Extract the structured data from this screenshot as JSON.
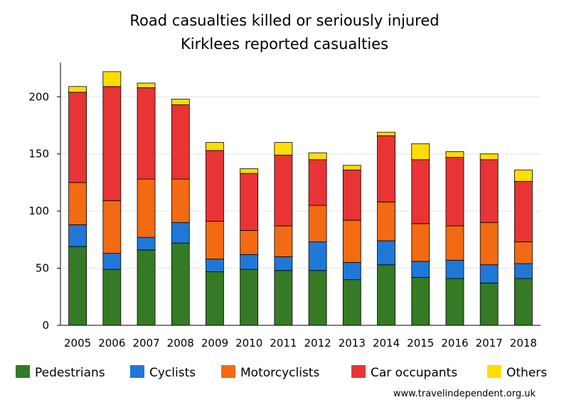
{
  "chart_data": {
    "type": "bar",
    "stacked": true,
    "title": "Road casualties killed or seriously injured",
    "subtitle": "Kirklees reported casualties",
    "xlabel": "",
    "ylabel": "",
    "ylim": [
      0,
      230
    ],
    "yticks": [
      0,
      50,
      100,
      150,
      200
    ],
    "grid": true,
    "legend_position": "bottom",
    "categories": [
      "2005",
      "2006",
      "2007",
      "2008",
      "2009",
      "2010",
      "2011",
      "2012",
      "2013",
      "2014",
      "2015",
      "2016",
      "2017",
      "2018"
    ],
    "series": [
      {
        "name": "Pedestrians",
        "color": "#357a24",
        "values": [
          69,
          49,
          66,
          72,
          47,
          49,
          48,
          48,
          40,
          53,
          42,
          41,
          37,
          41
        ]
      },
      {
        "name": "Cyclists",
        "color": "#1f78d8",
        "values": [
          19,
          14,
          11,
          18,
          11,
          13,
          12,
          25,
          15,
          21,
          14,
          16,
          16,
          13
        ]
      },
      {
        "name": "Motorcyclists",
        "color": "#f26a12",
        "values": [
          37,
          46,
          51,
          38,
          33,
          21,
          27,
          32,
          37,
          34,
          33,
          30,
          37,
          19
        ]
      },
      {
        "name": "Car occupants",
        "color": "#e83434",
        "values": [
          79,
          100,
          80,
          65,
          62,
          50,
          62,
          40,
          44,
          58,
          56,
          60,
          55,
          53
        ]
      },
      {
        "name": "Others",
        "color": "#ffdd00",
        "values": [
          5,
          13,
          4,
          5,
          7,
          4,
          11,
          6,
          4,
          3,
          14,
          5,
          5,
          10
        ]
      }
    ]
  },
  "credit": "www.travelindependent.org.uk"
}
